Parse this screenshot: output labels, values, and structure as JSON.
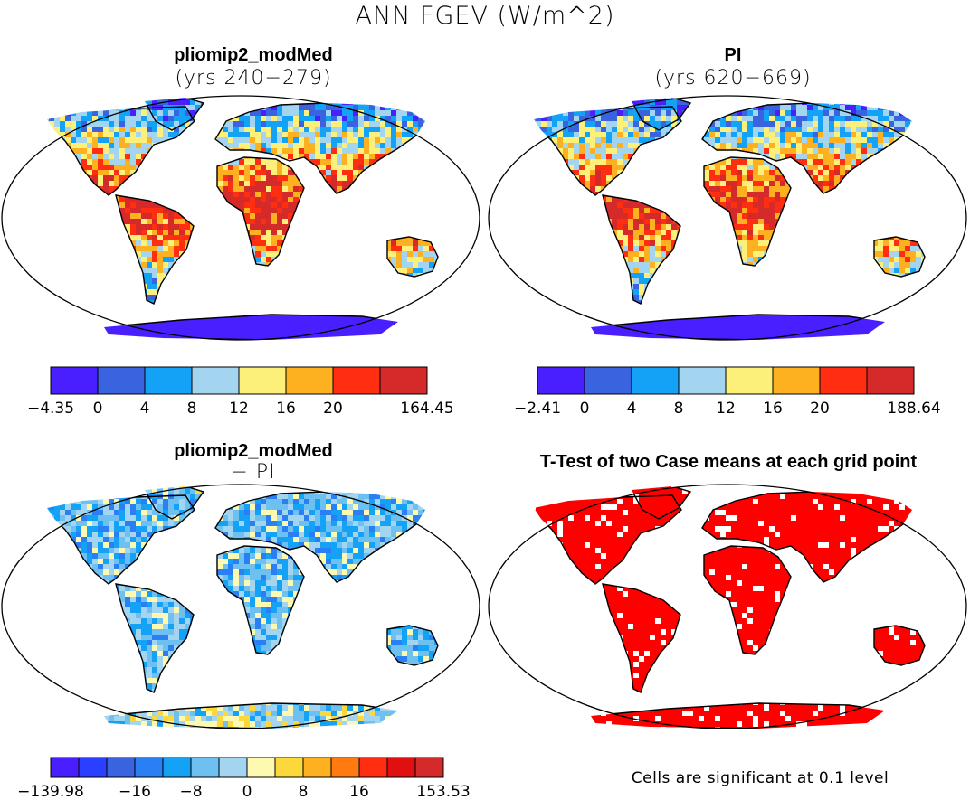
{
  "main_title": "ANN FGEV (W/m^2)",
  "panels": [
    {
      "id": "tl",
      "title": "pliomip2_modMed",
      "subtitle": "(yrs 240−279)",
      "colorbar": {
        "colors": [
          "#4a1fff",
          "#3a63e0",
          "#13a2f5",
          "#a3d5f1",
          "#fcf07a",
          "#fdb020",
          "#ff2e10",
          "#d42a2a"
        ],
        "labels": [
          "−4.35",
          "0",
          "4",
          "8",
          "12",
          "16",
          "20",
          "164.45"
        ]
      }
    },
    {
      "id": "tr",
      "title": "PI",
      "subtitle": "(yrs 620−669)",
      "colorbar": {
        "colors": [
          "#4a1fff",
          "#3a63e0",
          "#13a2f5",
          "#a3d5f1",
          "#fcf07a",
          "#fdb020",
          "#ff2e10",
          "#d42a2a"
        ],
        "labels": [
          "−2.41",
          "0",
          "4",
          "8",
          "12",
          "16",
          "20",
          "188.64"
        ]
      }
    },
    {
      "id": "bl",
      "title": "pliomip2_modMed",
      "subtitle": "− PI",
      "colorbar": {
        "colors": [
          "#4a1fff",
          "#2a3fff",
          "#3a63e0",
          "#2a7ff5",
          "#13a2f5",
          "#6ec0f0",
          "#a3d5f1",
          "#fef9b0",
          "#fcd83a",
          "#fdb020",
          "#ff7a10",
          "#ff2e10",
          "#e01010",
          "#d42a2a"
        ],
        "labels": [
          "−139.98",
          "−16",
          "−8",
          "0",
          "8",
          "16",
          "153.53"
        ]
      }
    },
    {
      "id": "br",
      "title": "T-Test of two Case means at each grid point",
      "note": "Cells are significant at 0.1 level",
      "significant_color": "#ff0000"
    }
  ]
}
